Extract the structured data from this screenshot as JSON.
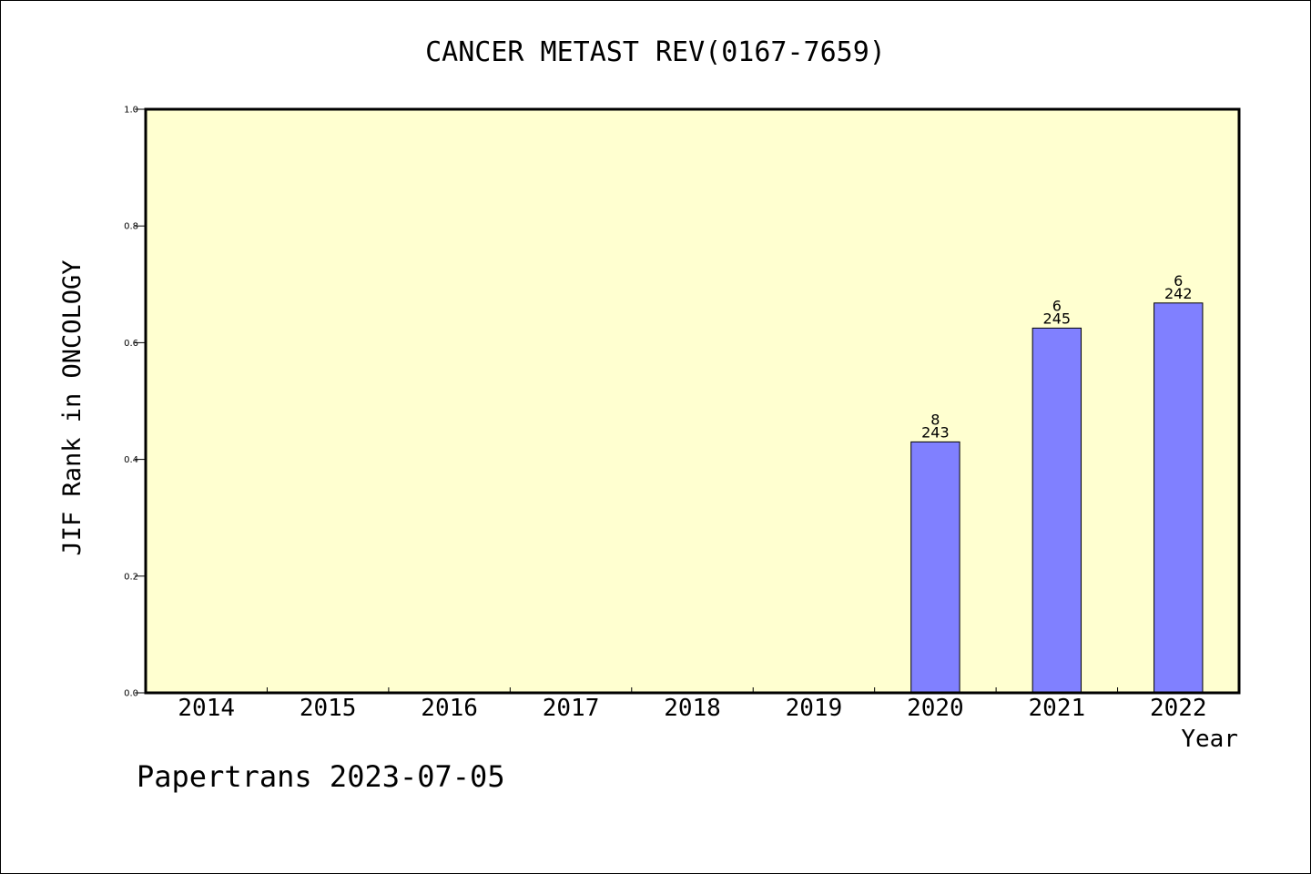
{
  "chart_data": {
    "type": "bar",
    "title": "CANCER METAST REV(0167-7659)",
    "xlabel": "Year",
    "ylabel": "JIF Rank in ONCOLOGY",
    "categories": [
      "2014",
      "2015",
      "2016",
      "2017",
      "2018",
      "2019",
      "2020",
      "2021",
      "2022"
    ],
    "values": [
      null,
      null,
      null,
      null,
      null,
      null,
      0.43,
      0.625,
      0.668
    ],
    "bar_labels": [
      null,
      null,
      null,
      null,
      null,
      null,
      {
        "rank": "8",
        "total": "243"
      },
      {
        "rank": "6",
        "total": "245"
      },
      {
        "rank": "6",
        "total": "242"
      }
    ],
    "ylim": [
      0,
      1.0
    ],
    "yticks": [
      "0.0",
      "0.2",
      "0.4",
      "0.6",
      "0.8",
      "1.0"
    ],
    "grid": false,
    "colors": {
      "plot_background": "#ffffd0",
      "bar_fill": "#8080ff",
      "axis": "#000000"
    }
  },
  "footer": {
    "caption": "Papertrans 2023-07-05"
  }
}
